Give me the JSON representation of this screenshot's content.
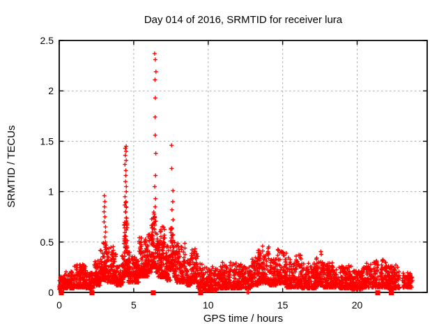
{
  "window": {
    "background": "#ffffff"
  },
  "chart_data": {
    "type": "scatter",
    "title": "Day 014 of 2016, SRMTID for receiver lura",
    "xlabel": "GPS time / hours",
    "ylabel": "SRMTID / TECUs",
    "xlim": [
      0,
      24.7
    ],
    "ylim": [
      0,
      2.5
    ],
    "xticks": [
      0,
      5,
      10,
      15,
      20
    ],
    "xtick_labels": [
      "0",
      "5",
      "10",
      "15",
      "20"
    ],
    "yticks": [
      0,
      0.5,
      1,
      1.5,
      2,
      2.5
    ],
    "ytick_labels": [
      "0",
      "0.5",
      "1",
      "1.5",
      "2",
      "2.5"
    ],
    "grid": true,
    "legend": "none",
    "marker": "plus",
    "colors": {
      "points": "#ff0000",
      "grid": "#a8a8a8",
      "axes": "#000000",
      "text": "#000000",
      "background": "#ffffff"
    },
    "series": [
      {
        "name": "SRMTID",
        "representation": "density-envelope",
        "band_segments_format": "[hour_start, hour_end, value_min, value_max, point_count]",
        "band_segments": [
          [
            0.0,
            0.35,
            0.03,
            0.16,
            55
          ],
          [
            0.35,
            1.0,
            0.04,
            0.21,
            95
          ],
          [
            1.0,
            1.8,
            0.05,
            0.28,
            115
          ],
          [
            1.8,
            2.3,
            0.04,
            0.2,
            70
          ],
          [
            2.3,
            2.75,
            0.07,
            0.32,
            65
          ],
          [
            2.75,
            3.25,
            0.12,
            0.5,
            70
          ],
          [
            3.25,
            3.8,
            0.1,
            0.46,
            85
          ],
          [
            3.8,
            4.2,
            0.07,
            0.27,
            60
          ],
          [
            4.2,
            4.35,
            0.1,
            0.4,
            25
          ],
          [
            4.35,
            4.6,
            0.18,
            0.9,
            60
          ],
          [
            4.6,
            4.75,
            0.1,
            0.4,
            25
          ],
          [
            4.75,
            5.35,
            0.1,
            0.36,
            85
          ],
          [
            5.35,
            5.95,
            0.16,
            0.55,
            90
          ],
          [
            5.95,
            6.2,
            0.2,
            0.62,
            40
          ],
          [
            6.2,
            6.5,
            0.25,
            0.8,
            60
          ],
          [
            6.5,
            6.65,
            0.2,
            0.6,
            25
          ],
          [
            6.65,
            7.15,
            0.15,
            0.66,
            80
          ],
          [
            7.15,
            7.45,
            0.12,
            0.5,
            45
          ],
          [
            7.45,
            7.7,
            0.22,
            0.66,
            45
          ],
          [
            7.7,
            7.85,
            0.15,
            0.5,
            25
          ],
          [
            7.85,
            8.45,
            0.1,
            0.5,
            80
          ],
          [
            8.45,
            8.85,
            0.07,
            0.33,
            55
          ],
          [
            8.85,
            9.3,
            0.1,
            0.47,
            60
          ],
          [
            9.3,
            9.65,
            0.04,
            0.3,
            45
          ],
          [
            9.65,
            10.65,
            0.02,
            0.27,
            120
          ],
          [
            10.65,
            12.25,
            0.04,
            0.3,
            195
          ],
          [
            12.25,
            12.85,
            0.04,
            0.26,
            70
          ],
          [
            12.85,
            13.35,
            0.07,
            0.35,
            65
          ],
          [
            13.35,
            14.1,
            0.09,
            0.46,
            100
          ],
          [
            14.1,
            14.55,
            0.07,
            0.33,
            60
          ],
          [
            14.55,
            15.25,
            0.09,
            0.43,
            95
          ],
          [
            15.25,
            16.25,
            0.05,
            0.38,
            120
          ],
          [
            16.25,
            17.25,
            0.04,
            0.29,
            115
          ],
          [
            17.25,
            17.7,
            0.07,
            0.42,
            60
          ],
          [
            17.7,
            18.7,
            0.05,
            0.3,
            125
          ],
          [
            18.7,
            19.6,
            0.04,
            0.27,
            110
          ],
          [
            19.6,
            20.35,
            0.03,
            0.22,
            85
          ],
          [
            20.35,
            21.2,
            0.05,
            0.3,
            100
          ],
          [
            21.2,
            22.0,
            0.05,
            0.33,
            95
          ],
          [
            22.0,
            22.85,
            0.04,
            0.28,
            100
          ],
          [
            23.05,
            23.7,
            0.05,
            0.2,
            70
          ]
        ],
        "spike_columns": [
          {
            "x": 3.06,
            "values": [
              0.96,
              0.9,
              0.85,
              0.8,
              0.75,
              0.7,
              0.65,
              0.6,
              0.55,
              0.5
            ]
          },
          {
            "x": 4.45,
            "values": [
              1.45,
              1.43,
              1.4,
              1.36,
              1.31,
              1.27,
              1.21,
              1.16,
              1.1,
              1.05,
              1.0,
              0.95,
              0.9,
              0.85,
              0.8,
              0.74,
              0.68,
              0.62,
              0.56
            ]
          },
          {
            "x": 6.45,
            "values": [
              2.37,
              2.31,
              2.19,
              2.11,
              1.93,
              1.74,
              1.56,
              1.38,
              1.16,
              1.05,
              0.93,
              0.85
            ]
          },
          {
            "x": 7.59,
            "values": [
              1.46,
              1.23,
              1.01,
              0.9,
              0.82,
              0.72,
              0.63
            ]
          }
        ],
        "zero_square_points_x": [
          0.14,
          2.2,
          6.31,
          9.49,
          21.38,
          22.29
        ],
        "zero_plus_points_x": [
          12.62,
          12.71
        ]
      }
    ],
    "render_seed": 20160114
  }
}
